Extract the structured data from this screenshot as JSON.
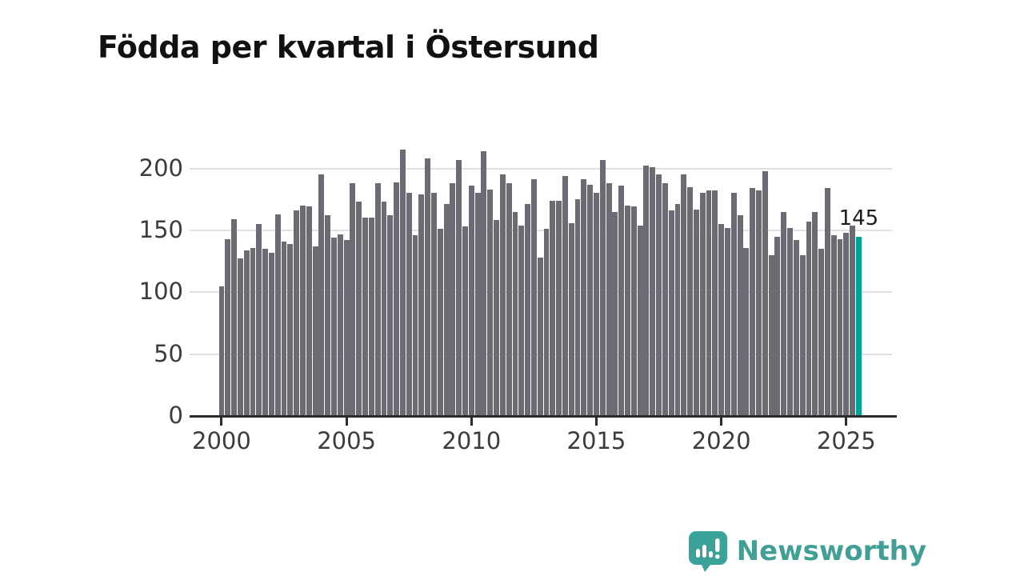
{
  "title": "Födda per kvartal i Östersund",
  "chart_data": {
    "type": "bar",
    "x_start": "2000 K1",
    "x_interval": "quarter",
    "x_tick_labels": [
      "2000",
      "2005",
      "2010",
      "2015",
      "2020",
      "2025"
    ],
    "y_ticks": [
      "0",
      "50",
      "100",
      "150",
      "200"
    ],
    "ylim": [
      0,
      220
    ],
    "grid": true,
    "bar_color": "#6b6b74",
    "values": [
      105,
      143,
      159,
      127,
      134,
      136,
      155,
      135,
      132,
      163,
      141,
      139,
      166,
      170,
      169,
      137,
      195,
      162,
      144,
      147,
      142,
      188,
      173,
      160,
      160,
      188,
      173,
      162,
      189,
      215,
      180,
      146,
      179,
      208,
      180,
      151,
      171,
      188,
      207,
      153,
      186,
      180,
      214,
      183,
      158,
      195,
      188,
      165,
      154,
      171,
      191,
      128,
      151,
      174,
      174,
      194,
      156,
      175,
      191,
      187,
      180,
      207,
      188,
      165,
      186,
      170,
      169,
      154,
      202,
      201,
      195,
      188,
      166,
      171,
      195,
      185,
      167,
      180,
      182,
      182,
      155,
      152,
      180,
      162,
      136,
      184,
      182,
      198,
      130,
      145,
      165,
      152,
      142,
      130,
      157,
      165,
      135,
      184,
      146,
      143,
      148,
      154,
      145
    ],
    "highlight": {
      "index": 102,
      "value": 145,
      "label": "145",
      "color": "#00a39b"
    }
  },
  "footer": {
    "brand": "Newsworthy",
    "logo_icon": "newsworthy-speech-bubble-bar-chart-icon",
    "brand_color": "#41a096"
  }
}
